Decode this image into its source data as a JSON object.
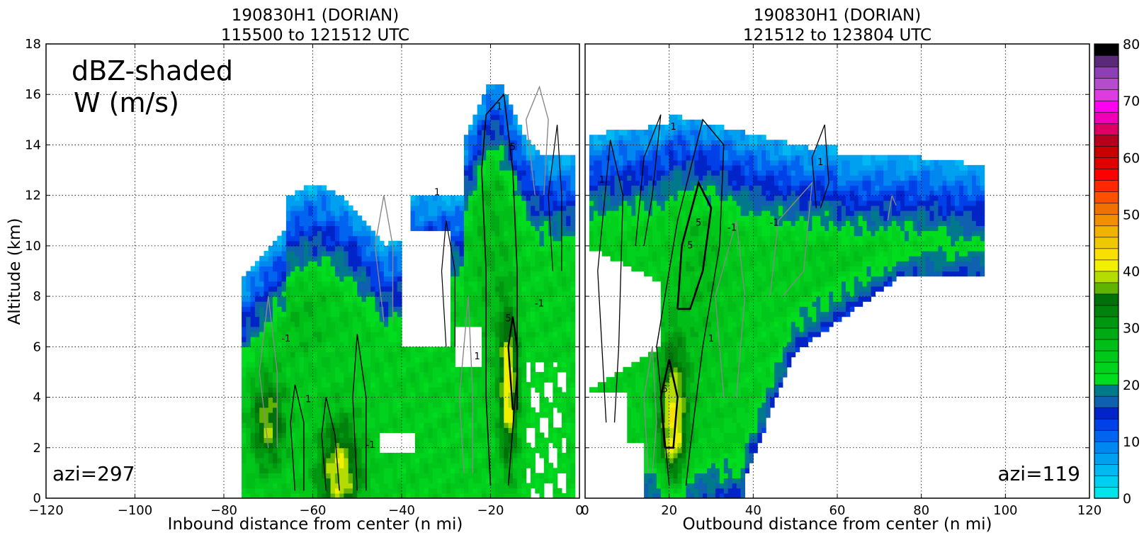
{
  "chart_data": [
    {
      "type": "heatmap",
      "panel": "left",
      "title": [
        "190830H1 (DORIAN)",
        "115500 to 121512 UTC"
      ],
      "xlabel": "Inbound distance from center (n mi)",
      "ylabel": "Altitude (km)",
      "xlim": [
        -120,
        0
      ],
      "ylim": [
        0,
        18
      ],
      "xticks": [
        -120,
        -100,
        -80,
        -60,
        -40,
        -20,
        0
      ],
      "xtick_labels": [
        "−120",
        "−100",
        "−80",
        "−60",
        "−40",
        "−20",
        "0"
      ],
      "yticks": [
        0,
        2,
        4,
        6,
        8,
        10,
        12,
        14,
        16,
        18
      ],
      "grid": true,
      "annotations": [
        "dBZ-shaded",
        "W (m/s)",
        "azi=297"
      ],
      "contour_labels": [
        "1",
        "-1",
        "5"
      ],
      "echo_columns": [
        {
          "x": [
            -76,
            -43
          ],
          "top": 11
        },
        {
          "x": [
            -43,
            -26
          ],
          "top": 12
        },
        {
          "x": [
            -26,
            -1
          ],
          "top": 16.5
        }
      ]
    },
    {
      "type": "heatmap",
      "panel": "right",
      "title": [
        "190830H1 (DORIAN)",
        "121512 to 123804 UTC"
      ],
      "xlabel": "Outbound distance from center (n mi)",
      "xlim": [
        0,
        120
      ],
      "ylim": [
        0,
        18
      ],
      "xticks": [
        0,
        20,
        40,
        60,
        80,
        100,
        120
      ],
      "xtick_labels": [
        "0",
        "20",
        "40",
        "60",
        "80",
        "100",
        "120"
      ],
      "grid": true,
      "annotations": [
        "azi=119"
      ],
      "contour_labels": [
        "1",
        "-1",
        "5"
      ],
      "echo_columns": [
        {
          "x": [
            1,
            95
          ],
          "top": 15.5
        }
      ]
    }
  ],
  "colorbar": {
    "label_values": [
      "80",
      "70",
      "60",
      "50",
      "40",
      "30",
      "20",
      "10",
      "0"
    ],
    "ticks": [
      0,
      10,
      20,
      30,
      40,
      50,
      60,
      70,
      80
    ],
    "range": [
      0,
      80
    ],
    "colors": [
      "#00e5ea",
      "#00d0f0",
      "#00b8f2",
      "#00a0f0",
      "#0088f0",
      "#0064f0",
      "#0040e8",
      "#0024c8",
      "#1060b0",
      "#007a8a",
      "#00dc1e",
      "#00d21e",
      "#00c81a",
      "#00be18",
      "#00aa14",
      "#009610",
      "#00820c",
      "#00700a",
      "#60b400",
      "#b4dc00",
      "#f0f000",
      "#f8e000",
      "#f0c800",
      "#f0b400",
      "#f09000",
      "#f07000",
      "#ff5000",
      "#ff2800",
      "#ff0000",
      "#e00000",
      "#c80000",
      "#b4001e",
      "#dc0064",
      "#f000b4",
      "#ff00f0",
      "#dc3ce0",
      "#b44ccc",
      "#8c40b4",
      "#5a2a78",
      "#000000"
    ]
  }
}
